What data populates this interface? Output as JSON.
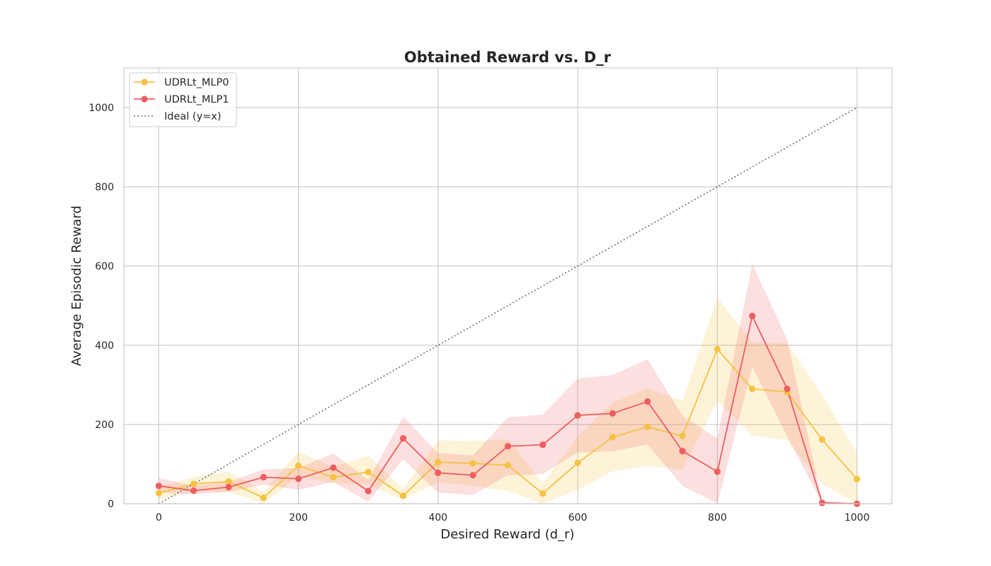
{
  "chart_data": {
    "type": "line",
    "title": "Obtained Reward vs. D_r",
    "xlabel": "Desired Reward (d_r)",
    "ylabel": "Average Episodic Reward",
    "xlim": [
      -50,
      1050
    ],
    "ylim": [
      0,
      1100
    ],
    "xticks": [
      0,
      200,
      400,
      600,
      800,
      1000
    ],
    "yticks": [
      0,
      200,
      400,
      600,
      800,
      1000
    ],
    "grid": true,
    "legend_position": "upper-left",
    "x": [
      0,
      50,
      100,
      150,
      200,
      250,
      300,
      350,
      400,
      450,
      500,
      550,
      600,
      650,
      700,
      750,
      800,
      850,
      900,
      950,
      1000
    ],
    "series": [
      {
        "name": "UDRLt_MLP0",
        "color": "#f5c242",
        "values": [
          27,
          50,
          56,
          15,
          96,
          67,
          80,
          20,
          105,
          102,
          97,
          26,
          103,
          168,
          194,
          171,
          390,
          290,
          282,
          162,
          62
        ],
        "lower": [
          10,
          32,
          30,
          0,
          70,
          52,
          48,
          10,
          55,
          45,
          32,
          0,
          35,
          82,
          96,
          85,
          260,
          172,
          160,
          50,
          0
        ],
        "upper": [
          42,
          68,
          82,
          30,
          132,
          92,
          122,
          38,
          160,
          158,
          163,
          52,
          170,
          255,
          292,
          260,
          520,
          408,
          405,
          275,
          128
        ]
      },
      {
        "name": "UDRLt_MLP1",
        "color": "#ee5e60",
        "values": [
          45,
          33,
          42,
          67,
          63,
          91,
          32,
          165,
          78,
          72,
          145,
          149,
          223,
          228,
          258,
          133,
          81,
          474,
          290,
          2,
          0
        ],
        "lower": [
          28,
          24,
          30,
          48,
          35,
          55,
          5,
          112,
          28,
          22,
          72,
          75,
          130,
          132,
          150,
          45,
          0,
          345,
          170,
          0,
          0
        ],
        "upper": [
          65,
          45,
          55,
          87,
          90,
          127,
          60,
          220,
          128,
          122,
          218,
          225,
          316,
          325,
          365,
          222,
          165,
          605,
          415,
          8,
          2
        ]
      },
      {
        "name": "Ideal (y=x)",
        "color": "#6e6e6e",
        "style": "dotted",
        "x": [
          0,
          1000
        ],
        "values": [
          0,
          1000
        ]
      }
    ]
  }
}
